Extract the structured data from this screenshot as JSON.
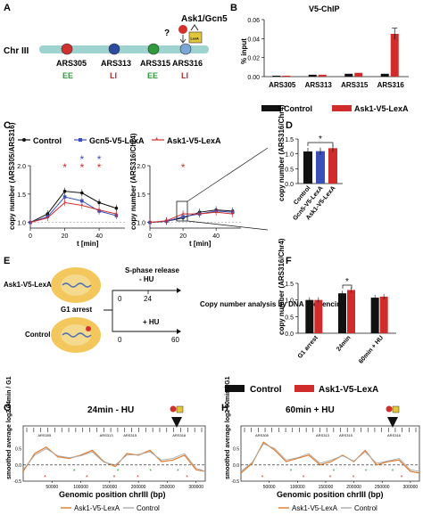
{
  "panels": {
    "A": {
      "letter": "A",
      "chromosome": "Chr III",
      "complex_label": "Ask1/Gcn5",
      "question_mark": "?",
      "lexa_box": "LexA",
      "origins": [
        {
          "name": "ARS305",
          "timing": "EE",
          "color": "#d0312d",
          "timing_color": "#2f9a3c"
        },
        {
          "name": "ARS313",
          "timing": "LI",
          "color": "#2b4aa0",
          "timing_color": "#c0262c"
        },
        {
          "name": "ARS315",
          "timing": "EE",
          "color": "#2f9a3c",
          "timing_color": "#2f9a3c"
        },
        {
          "name": "ARS316",
          "timing": "LI",
          "color": "#7aa7d8",
          "timing_color": "#c0262c"
        }
      ]
    },
    "B": {
      "letter": "B",
      "chart_data": {
        "type": "bar",
        "title": "V5-ChIP",
        "ylabel": "% input",
        "xlabel": "",
        "ylim": [
          0,
          0.06
        ],
        "yticks": [
          "0.06",
          "0.04",
          "0.02",
          "0.00"
        ],
        "categories": [
          "ARS305",
          "ARS313",
          "ARS315",
          "ARS316"
        ],
        "series": [
          {
            "name": "Control",
            "color": "#111111",
            "values": [
              0.001,
              0.002,
              0.003,
              0.003
            ]
          },
          {
            "name": "Ask1-V5-LexA",
            "color": "#d12c2c",
            "values": [
              0.001,
              0.002,
              0.004,
              0.045
            ]
          }
        ],
        "legend": "bottom"
      }
    },
    "C": {
      "letter": "C",
      "legend": [
        {
          "name": "Control",
          "color": "#111111"
        },
        {
          "name": "Gcn5-V5-LexA",
          "color": "#3a50b8"
        },
        {
          "name": "Ask1-V5-LexA",
          "color": "#d12c2c"
        }
      ],
      "chart_data": [
        {
          "type": "line",
          "ylabel": "copy number (ARS305/ARS316)",
          "xlabel": "t [min]",
          "ylim": [
            0.9,
            2.0
          ],
          "yticks": [
            "2.0",
            "1.5",
            "1.0"
          ],
          "xticks": [
            "0",
            "20",
            "40"
          ],
          "x": [
            0,
            10,
            20,
            30,
            40,
            50
          ],
          "series": [
            {
              "name": "Control",
              "values": [
                1.0,
                1.15,
                1.55,
                1.52,
                1.35,
                1.25
              ]
            },
            {
              "name": "Gcn5-V5-LexA",
              "values": [
                1.0,
                1.1,
                1.45,
                1.38,
                1.2,
                1.12
              ]
            },
            {
              "name": "Ask1-V5-LexA",
              "values": [
                1.0,
                1.08,
                1.35,
                1.3,
                1.22,
                1.15
              ]
            }
          ],
          "significance_x": [
            20,
            30,
            40
          ],
          "significance_blue_x": [
            30,
            40
          ]
        },
        {
          "type": "line",
          "ylabel": "copy number (ARS316/Chr4)",
          "xlabel": "t [min]",
          "ylim": [
            0.9,
            2.0
          ],
          "yticks": [
            "2.0",
            "1.5",
            "1.0"
          ],
          "xticks": [
            "0",
            "20",
            "40"
          ],
          "x": [
            0,
            10,
            20,
            30,
            40,
            50
          ],
          "series": [
            {
              "name": "Control",
              "values": [
                1.0,
                1.02,
                1.08,
                1.18,
                1.22,
                1.2
              ]
            },
            {
              "name": "Gcn5-V5-LexA",
              "values": [
                1.0,
                1.02,
                1.1,
                1.15,
                1.2,
                1.18
              ]
            },
            {
              "name": "Ask1-V5-LexA",
              "values": [
                1.0,
                1.03,
                1.15,
                1.15,
                1.18,
                1.15
              ]
            }
          ],
          "significance_x": [
            20
          ]
        }
      ]
    },
    "D": {
      "letter": "D",
      "chart_data": {
        "type": "bar",
        "ylabel": "copy number (ARS316/Chr4)",
        "ylim": [
          0,
          1.5
        ],
        "yticks": [
          "1.5",
          "1.0",
          "0.5",
          "0.0"
        ],
        "categories": [
          "Control",
          "Gcn5-V5-LexA",
          "Ask1-V5-LexA"
        ],
        "values": [
          1.08,
          1.09,
          1.19
        ],
        "colors": [
          "#111111",
          "#3a50b8",
          "#d12c2c"
        ],
        "significance": "*"
      }
    },
    "E": {
      "letter": "E",
      "strain_top": "Ask1-V5-LexA",
      "strain_bottom": "Control",
      "arrest": "G1 arrest",
      "branch_top": "S-phase release",
      "branch_top_sub": "- HU",
      "branch_bottom": "+ HU",
      "t0_top": "0",
      "t1_top": "24",
      "t0_bottom": "0",
      "t1_bottom": "60",
      "analysis": "Copy number analysis by DNA sequencing"
    },
    "F": {
      "letter": "F",
      "chart_data": {
        "type": "bar",
        "ylabel": "copy number (ARS316/Chr4)",
        "ylim": [
          0,
          1.5
        ],
        "yticks": [
          "1.5",
          "1.0",
          "0.5",
          "0.0"
        ],
        "categories": [
          "G1 arrest",
          "24min",
          "60min + HU"
        ],
        "series": [
          {
            "name": "Control",
            "color": "#111111",
            "values": [
              1.0,
              1.2,
              1.07
            ]
          },
          {
            "name": "Ask1-V5-LexA",
            "color": "#d12c2c",
            "values": [
              1.0,
              1.3,
              1.1
            ]
          }
        ],
        "significance": "*",
        "legend": "bottom"
      }
    },
    "G": {
      "letter": "G",
      "chart_data": {
        "type": "line",
        "title": "24min - HU",
        "ylabel": "smoothed average log2 24min / G1",
        "xlabel": "Genomic position chrIII (bp)",
        "xlim": [
          0,
          316000
        ],
        "ylim": [
          -0.5,
          1.2
        ],
        "xticks": [
          "50000",
          "100000",
          "150000",
          "200000",
          "250000",
          "300000"
        ],
        "yticks": [
          "0.5",
          "0.0",
          "-0.5"
        ],
        "origin_labels": [
          "ARS305",
          "ARS313",
          "ARS315",
          "ARS316"
        ],
        "x": [
          0,
          20000,
          40000,
          60000,
          80000,
          100000,
          120000,
          140000,
          160000,
          180000,
          200000,
          220000,
          240000,
          260000,
          280000,
          300000,
          316000
        ],
        "series": [
          {
            "name": "Ask1-V5-LexA",
            "values": [
              -0.2,
              0.35,
              0.55,
              0.25,
              0.2,
              0.3,
              0.45,
              0.1,
              -0.05,
              0.35,
              0.3,
              0.45,
              0.1,
              0.15,
              0.3,
              -0.15,
              -0.2
            ]
          },
          {
            "name": "Control",
            "values": [
              -0.15,
              0.3,
              0.5,
              0.28,
              0.22,
              0.28,
              0.4,
              0.08,
              0.0,
              0.3,
              0.32,
              0.4,
              0.15,
              0.2,
              0.35,
              -0.1,
              -0.2
            ]
          }
        ]
      }
    },
    "H": {
      "letter": "H",
      "chart_data": {
        "type": "line",
        "title": "60min + HU",
        "ylabel": "smoothed average log2 60min / G1",
        "xlabel": "Genomic position chrIII (bp)",
        "xlim": [
          0,
          316000
        ],
        "ylim": [
          -0.5,
          1.2
        ],
        "xticks": [
          "50000",
          "100000",
          "150000",
          "200000",
          "250000",
          "300000"
        ],
        "yticks": [
          "0.5",
          "0.0",
          "-0.5"
        ],
        "origin_labels": [
          "ARS305",
          "ARS313",
          "ARS315",
          "ARS316"
        ],
        "x": [
          0,
          20000,
          40000,
          60000,
          80000,
          100000,
          120000,
          140000,
          160000,
          180000,
          200000,
          220000,
          240000,
          260000,
          280000,
          300000,
          316000
        ],
        "series": [
          {
            "name": "Ask1-V5-LexA",
            "values": [
              -0.25,
              0.05,
              0.7,
              0.45,
              0.1,
              0.2,
              0.3,
              0.0,
              0.1,
              0.3,
              0.1,
              0.45,
              0.0,
              0.1,
              0.15,
              -0.2,
              -0.25
            ]
          },
          {
            "name": "Control",
            "values": [
              -0.2,
              0.08,
              0.65,
              0.5,
              0.15,
              0.22,
              0.35,
              0.05,
              0.15,
              0.28,
              0.12,
              0.4,
              0.05,
              0.12,
              0.2,
              -0.15,
              -0.2
            ]
          }
        ]
      }
    }
  },
  "legend_bottom": {
    "B": [
      "Control",
      "Ask1-V5-LexA"
    ],
    "F": [
      "Control",
      "Ask1-V5-LexA"
    ],
    "G": [
      "Ask1-V5-LexA",
      "Control"
    ],
    "H": [
      "Ask1-V5-LexA",
      "Control"
    ]
  },
  "colors": {
    "control": "#111111",
    "ask1": "#d12c2c",
    "gcn5": "#3a50b8",
    "chromosome": "#9fd3cf",
    "ask1_line": "#e07a2c",
    "early_dot": "#2f9a3c"
  }
}
